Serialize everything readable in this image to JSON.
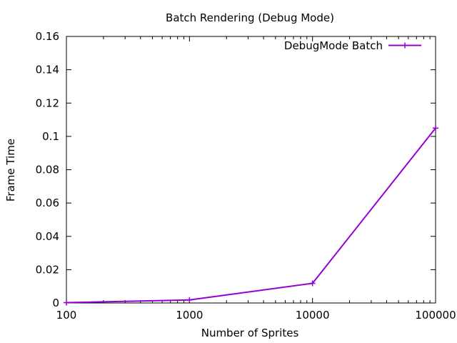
{
  "chart_data": {
    "type": "line",
    "title": "Batch Rendering (Debug Mode)",
    "xlabel": "Number of Sprites",
    "ylabel": "Frame Time",
    "xscale": "log",
    "xlim": [
      100,
      100000
    ],
    "ylim": [
      0,
      0.16
    ],
    "xticks": [
      100,
      1000,
      10000,
      100000
    ],
    "xtick_labels": [
      "100",
      "1000",
      "10000",
      "100000"
    ],
    "yticks": [
      0,
      0.02,
      0.04,
      0.06,
      0.08,
      0.1,
      0.12,
      0.14,
      0.16
    ],
    "ytick_labels": [
      "0",
      "0.02",
      "0.04",
      "0.06",
      "0.08",
      "0.1",
      "0.12",
      "0.14",
      "0.16"
    ],
    "grid": false,
    "legend_position": "top-right",
    "series": [
      {
        "name": "DebugMode Batch",
        "color": "#9400d3",
        "marker": "plus",
        "x": [
          100,
          1000,
          10000,
          100000
        ],
        "y": [
          0.0002,
          0.0018,
          0.0118,
          0.105
        ]
      }
    ]
  }
}
